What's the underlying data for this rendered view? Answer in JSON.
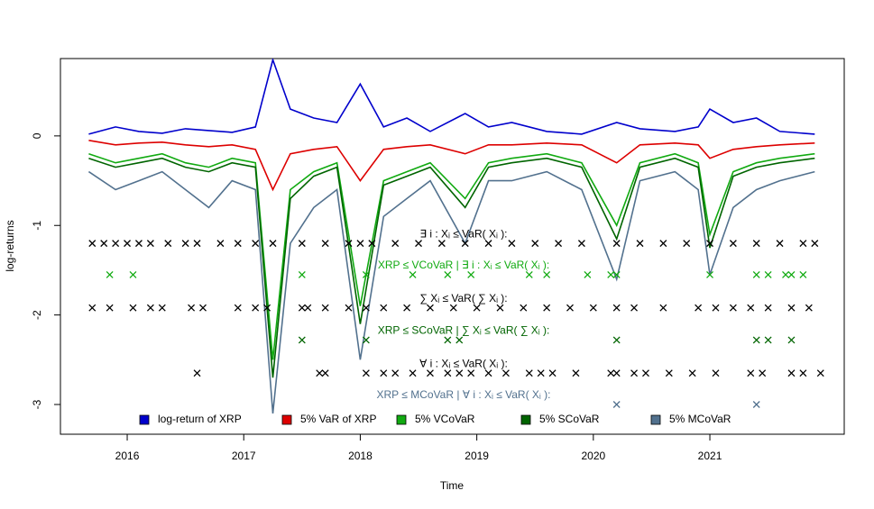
{
  "chart_data": {
    "type": "line",
    "xlabel": "Time",
    "ylabel": "log-returns",
    "xlim": [
      2015.427,
      2022.153
    ],
    "ylim": [
      -3.332,
      0.864
    ],
    "xticks": [
      2016,
      2017,
      2018,
      2019,
      2020,
      2021
    ],
    "yticks": [
      0,
      -1,
      -2,
      -3
    ],
    "legend": "bottom",
    "x": [
      2015.67,
      2015.9,
      2016.1,
      2016.3,
      2016.5,
      2016.7,
      2016.9,
      2017.1,
      2017.25,
      2017.4,
      2017.6,
      2017.8,
      2018.0,
      2018.2,
      2018.4,
      2018.6,
      2018.9,
      2019.1,
      2019.3,
      2019.6,
      2019.9,
      2020.2,
      2020.4,
      2020.7,
      2020.9,
      2021.0,
      2021.2,
      2021.4,
      2021.6,
      2021.9
    ],
    "series": [
      {
        "name": "log-return of XRP",
        "color": "#0000cc",
        "values": [
          0.02,
          0.1,
          0.05,
          0.03,
          0.08,
          0.06,
          0.04,
          0.1,
          0.85,
          0.3,
          0.2,
          0.15,
          0.58,
          0.1,
          0.2,
          0.05,
          0.25,
          0.1,
          0.15,
          0.05,
          0.02,
          0.15,
          0.08,
          0.05,
          0.1,
          0.3,
          0.15,
          0.2,
          0.05,
          0.02
        ]
      },
      {
        "name": "5% VaR of XRP",
        "color": "#dd0000",
        "values": [
          -0.05,
          -0.1,
          -0.08,
          -0.07,
          -0.1,
          -0.12,
          -0.1,
          -0.15,
          -0.6,
          -0.2,
          -0.15,
          -0.12,
          -0.5,
          -0.15,
          -0.12,
          -0.1,
          -0.2,
          -0.1,
          -0.1,
          -0.08,
          -0.1,
          -0.3,
          -0.1,
          -0.08,
          -0.1,
          -0.25,
          -0.15,
          -0.12,
          -0.1,
          -0.08
        ]
      },
      {
        "name": "5% VCoVaR",
        "color": "#11aa11",
        "values": [
          -0.2,
          -0.3,
          -0.25,
          -0.2,
          -0.3,
          -0.35,
          -0.25,
          -0.3,
          -2.5,
          -0.6,
          -0.4,
          -0.3,
          -1.9,
          -0.5,
          -0.4,
          -0.3,
          -0.7,
          -0.3,
          -0.25,
          -0.2,
          -0.3,
          -1.0,
          -0.3,
          -0.2,
          -0.3,
          -1.1,
          -0.4,
          -0.3,
          -0.25,
          -0.2
        ]
      },
      {
        "name": "5% SCoVaR",
        "color": "#006400",
        "values": [
          -0.25,
          -0.35,
          -0.3,
          -0.25,
          -0.35,
          -0.4,
          -0.3,
          -0.35,
          -2.7,
          -0.7,
          -0.45,
          -0.35,
          -2.1,
          -0.55,
          -0.45,
          -0.35,
          -0.8,
          -0.35,
          -0.3,
          -0.25,
          -0.35,
          -1.15,
          -0.35,
          -0.25,
          -0.35,
          -1.25,
          -0.45,
          -0.35,
          -0.3,
          -0.25
        ]
      },
      {
        "name": "5% MCoVaR",
        "color": "#52718e",
        "values": [
          -0.4,
          -0.6,
          -0.5,
          -0.4,
          -0.6,
          -0.8,
          -0.5,
          -0.6,
          -3.1,
          -1.2,
          -0.8,
          -0.6,
          -2.5,
          -0.9,
          -0.7,
          -0.5,
          -1.2,
          -0.5,
          -0.5,
          -0.4,
          -0.6,
          -1.6,
          -0.5,
          -0.4,
          -0.6,
          -1.55,
          -0.8,
          -0.6,
          -0.5,
          -0.4
        ]
      }
    ],
    "exceedances": [
      {
        "label": "∃ i :  Xᵢ ≤ VaR( Xᵢ ):",
        "y": -1.2,
        "color": "#000000",
        "x": [
          2015.7,
          2015.8,
          2015.9,
          2016.0,
          2016.1,
          2016.2,
          2016.35,
          2016.5,
          2016.6,
          2016.8,
          2016.95,
          2017.1,
          2017.25,
          2017.5,
          2017.7,
          2017.9,
          2018.0,
          2018.1,
          2018.3,
          2018.5,
          2018.7,
          2018.9,
          2019.1,
          2019.3,
          2019.5,
          2019.7,
          2019.9,
          2020.2,
          2020.4,
          2020.6,
          2020.8,
          2021.0,
          2021.2,
          2021.4,
          2021.6,
          2021.8,
          2021.9
        ]
      },
      {
        "label": "XRP ≤ VCoVaR | ∃ i :  Xᵢ ≤ VaR( Xᵢ ):",
        "y": -1.55,
        "color": "#11aa11",
        "x": [
          2015.85,
          2016.05,
          2017.5,
          2018.05,
          2018.45,
          2018.75,
          2018.95,
          2019.45,
          2019.6,
          2019.95,
          2020.15,
          2020.2,
          2021.0,
          2021.4,
          2021.5,
          2021.65,
          2021.7,
          2021.8
        ]
      },
      {
        "label": "∑ Xᵢ ≤ VaR( ∑ Xᵢ ):",
        "y": -1.92,
        "color": "#000000",
        "x": [
          2015.7,
          2015.85,
          2016.05,
          2016.2,
          2016.3,
          2016.55,
          2016.65,
          2016.95,
          2017.1,
          2017.2,
          2017.5,
          2017.55,
          2017.7,
          2017.9,
          2018.05,
          2018.2,
          2018.4,
          2018.6,
          2018.8,
          2019.0,
          2019.2,
          2019.4,
          2019.6,
          2019.8,
          2020.0,
          2020.2,
          2020.35,
          2020.6,
          2020.9,
          2021.05,
          2021.2,
          2021.35,
          2021.5,
          2021.7,
          2021.85
        ]
      },
      {
        "label": "XRP ≤ SCoVaR | ∑ Xᵢ ≤ VaR( ∑ Xᵢ ):",
        "y": -2.28,
        "color": "#006400",
        "x": [
          2017.5,
          2018.05,
          2018.75,
          2018.85,
          2020.2,
          2021.4,
          2021.5,
          2021.7
        ]
      },
      {
        "label": "∀ i :  Xᵢ ≤ VaR( Xᵢ ):",
        "y": -2.65,
        "color": "#000000",
        "x": [
          2016.6,
          2017.65,
          2017.7,
          2018.05,
          2018.2,
          2018.3,
          2018.45,
          2018.6,
          2018.75,
          2018.85,
          2018.95,
          2019.1,
          2019.25,
          2019.45,
          2019.55,
          2019.65,
          2019.85,
          2020.15,
          2020.2,
          2020.35,
          2020.45,
          2020.65,
          2020.85,
          2021.05,
          2021.35,
          2021.45,
          2021.7,
          2021.8,
          2021.95
        ]
      },
      {
        "label": "XRP ≤ MCoVaR | ∀ i :  Xᵢ ≤ VaR( Xᵢ ):",
        "y": -3.0,
        "color": "#52718e",
        "x": [
          2020.2,
          2021.4
        ]
      }
    ]
  }
}
